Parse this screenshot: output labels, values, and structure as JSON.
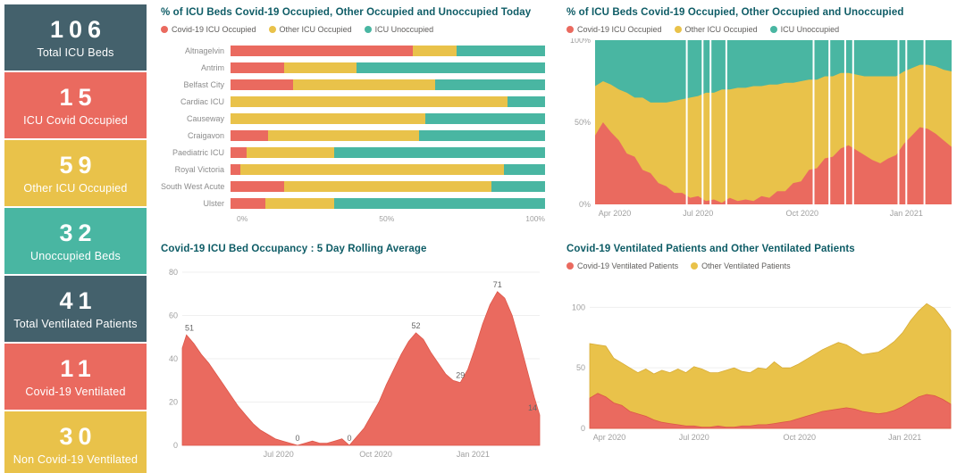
{
  "colors": {
    "red": "#EA6A5F",
    "yellow": "#E9C24A",
    "teal": "#49B6A2",
    "slate": "#44616C",
    "red_edge": "#DD5648",
    "yellow_edge": "#D8AC35",
    "title": "#0E5C66",
    "axis_text": "#9F9F9F",
    "legend_text": "#605E5C"
  },
  "kpi_cards": [
    {
      "value": "106",
      "label": "Total ICU Beds",
      "color": "slate"
    },
    {
      "value": "15",
      "label": "ICU Covid Occupied",
      "color": "red"
    },
    {
      "value": "59",
      "label": "Other ICU Occupied",
      "color": "yellow"
    },
    {
      "value": "32",
      "label": "Unoccupied Beds",
      "color": "teal"
    },
    {
      "value": "41",
      "label": "Total Ventilated Patients",
      "color": "slate"
    },
    {
      "value": "11",
      "label": "Covid-19 Ventilated",
      "color": "red"
    },
    {
      "value": "30",
      "label": "Non Covid-19 Ventilated",
      "color": "yellow"
    }
  ],
  "chart_data": [
    {
      "type": "bar",
      "variant": "stacked-100-horizontal",
      "title": "% of ICU Beds Covid-19 Occupied, Other Occupied and Unoccupied Today",
      "categories": [
        "Altnagelvin",
        "Antrim",
        "Belfast City",
        "Cardiac ICU",
        "Causeway",
        "Craigavon",
        "Paediatric ICU",
        "Royal Victoria",
        "South West Acute",
        "Ulster"
      ],
      "series": [
        {
          "name": "Covid-19 ICU Occupied",
          "color": "red",
          "values": [
            58,
            17,
            20,
            0,
            0,
            12,
            5,
            3,
            17,
            11
          ]
        },
        {
          "name": "Other ICU Occupied",
          "color": "yellow",
          "values": [
            14,
            23,
            45,
            88,
            62,
            48,
            28,
            84,
            66,
            22
          ]
        },
        {
          "name": "ICU Unoccupied",
          "color": "teal",
          "values": [
            28,
            60,
            35,
            12,
            38,
            40,
            67,
            13,
            17,
            67
          ]
        }
      ],
      "xlim": [
        0,
        100
      ],
      "x_ticks": [
        {
          "value": 0,
          "label": "0%"
        },
        {
          "value": 50,
          "label": "50%"
        },
        {
          "value": 100,
          "label": "100%"
        }
      ]
    },
    {
      "type": "area",
      "variant": "stacked-100",
      "title": "% of ICU Beds Covid-19 Occupied, Other Occupied and Unoccupied",
      "x": [
        "2020-04-01",
        "2020-04-08",
        "2020-04-15",
        "2020-04-22",
        "2020-04-29",
        "2020-05-06",
        "2020-05-13",
        "2020-05-20",
        "2020-05-27",
        "2020-06-03",
        "2020-06-10",
        "2020-06-17",
        "2020-06-24",
        "2020-07-01",
        "2020-07-08",
        "2020-07-15",
        "2020-07-22",
        "2020-07-29",
        "2020-08-05",
        "2020-08-12",
        "2020-08-19",
        "2020-08-26",
        "2020-09-02",
        "2020-09-09",
        "2020-09-16",
        "2020-09-23",
        "2020-09-30",
        "2020-10-07",
        "2020-10-14",
        "2020-10-21",
        "2020-10-28",
        "2020-11-04",
        "2020-11-11",
        "2020-11-18",
        "2020-11-25",
        "2020-12-02",
        "2020-12-09",
        "2020-12-16",
        "2020-12-23",
        "2020-12-30",
        "2021-01-06",
        "2021-01-13",
        "2021-01-20",
        "2021-01-27",
        "2021-02-03",
        "2021-02-10"
      ],
      "series": [
        {
          "name": "Covid-19 ICU Occupied",
          "color": "red",
          "values": [
            42,
            50,
            44,
            39,
            31,
            29,
            21,
            19,
            13,
            11,
            7,
            7,
            4,
            5,
            2,
            3,
            1,
            4,
            2,
            3,
            2,
            5,
            4,
            8,
            8,
            13,
            14,
            21,
            22,
            28,
            29,
            34,
            36,
            33,
            30,
            27,
            25,
            28,
            30,
            37,
            42,
            47,
            46,
            43,
            39,
            35
          ]
        },
        {
          "name": "Other ICU Occupied",
          "color": "yellow",
          "values": [
            30,
            25,
            29,
            31,
            37,
            36,
            44,
            43,
            49,
            51,
            56,
            57,
            61,
            61,
            66,
            65,
            69,
            66,
            69,
            68,
            70,
            67,
            69,
            65,
            66,
            61,
            61,
            55,
            54,
            50,
            49,
            46,
            44,
            46,
            48,
            51,
            53,
            50,
            48,
            44,
            41,
            38,
            39,
            41,
            43,
            46
          ]
        },
        {
          "name": "ICU Unoccupied",
          "color": "teal",
          "values": [
            28,
            25,
            27,
            30,
            32,
            35,
            35,
            38,
            38,
            38,
            37,
            36,
            35,
            34,
            32,
            32,
            30,
            30,
            29,
            29,
            28,
            28,
            27,
            27,
            26,
            26,
            25,
            24,
            24,
            22,
            22,
            20,
            20,
            21,
            22,
            22,
            22,
            22,
            22,
            19,
            17,
            15,
            15,
            16,
            18,
            19
          ]
        }
      ],
      "ylim": [
        0,
        100
      ],
      "y_ticks": [
        {
          "value": 0,
          "label": "0%"
        },
        {
          "value": 50,
          "label": "50%"
        },
        {
          "value": 100,
          "label": "100%"
        }
      ],
      "x_ticks": [
        {
          "date": "2020-04-01",
          "label": "Apr 2020"
        },
        {
          "date": "2020-07-01",
          "label": "Jul 2020"
        },
        {
          "date": "2020-10-01",
          "label": "Oct 2020"
        },
        {
          "date": "2021-01-01",
          "label": "Jan 2021"
        }
      ],
      "missing_dates": [
        "2020-06-21",
        "2020-07-05",
        "2020-07-12",
        "2020-07-26",
        "2020-10-11",
        "2020-10-25",
        "2020-11-08",
        "2020-11-15",
        "2020-12-25",
        "2021-01-01",
        "2021-01-17"
      ]
    },
    {
      "type": "area",
      "title": "Covid-19 ICU Bed Occupancy : 5 Day Rolling Average",
      "series": [
        {
          "name": "Covid-19 ICU Bed Occupancy",
          "color": "red",
          "x": [
            "2020-04-01",
            "2020-04-05",
            "2020-04-12",
            "2020-04-19",
            "2020-04-26",
            "2020-05-03",
            "2020-05-10",
            "2020-05-17",
            "2020-05-24",
            "2020-05-31",
            "2020-06-07",
            "2020-06-14",
            "2020-06-21",
            "2020-06-28",
            "2020-07-05",
            "2020-07-12",
            "2020-07-19",
            "2020-07-26",
            "2020-08-02",
            "2020-08-09",
            "2020-08-16",
            "2020-08-23",
            "2020-08-30",
            "2020-09-06",
            "2020-09-13",
            "2020-09-20",
            "2020-09-27",
            "2020-10-04",
            "2020-10-11",
            "2020-10-18",
            "2020-10-25",
            "2020-11-01",
            "2020-11-08",
            "2020-11-15",
            "2020-11-22",
            "2020-11-29",
            "2020-12-06",
            "2020-12-13",
            "2020-12-20",
            "2020-12-27",
            "2021-01-03",
            "2021-01-10",
            "2021-01-17",
            "2021-01-24",
            "2021-01-31",
            "2021-02-07",
            "2021-02-14",
            "2021-02-21",
            "2021-02-28",
            "2021-03-05"
          ],
          "values": [
            45,
            51,
            47,
            42,
            38,
            33,
            28,
            23,
            18,
            14,
            10,
            7,
            5,
            3,
            2,
            1,
            0,
            1,
            2,
            1,
            1,
            2,
            3,
            0,
            4,
            8,
            14,
            20,
            28,
            35,
            42,
            48,
            52,
            49,
            43,
            38,
            33,
            30,
            29,
            35,
            45,
            56,
            65,
            71,
            68,
            60,
            48,
            35,
            22,
            14
          ]
        }
      ],
      "ylim": [
        0,
        80
      ],
      "y_ticks": [
        0,
        20,
        40,
        60,
        80
      ],
      "x_ticks": [
        {
          "date": "2020-07-01",
          "label": "Jul 2020"
        },
        {
          "date": "2020-10-01",
          "label": "Oct 2020"
        },
        {
          "date": "2021-01-01",
          "label": "Jan 2021"
        }
      ],
      "annotations": [
        {
          "x": "2020-04-05",
          "y": 51,
          "text": "51"
        },
        {
          "x": "2020-07-19",
          "y": 0,
          "text": "0"
        },
        {
          "x": "2020-09-06",
          "y": 0,
          "text": "0"
        },
        {
          "x": "2020-11-08",
          "y": 52,
          "text": "52"
        },
        {
          "x": "2020-12-20",
          "y": 29,
          "text": "29"
        },
        {
          "x": "2021-01-24",
          "y": 71,
          "text": "71"
        },
        {
          "x": "2021-03-05",
          "y": 14,
          "text": "14"
        }
      ]
    },
    {
      "type": "area",
      "variant": "stacked",
      "title": "Covid-19 Ventilated Patients and Other Ventilated Patients",
      "x": [
        "2020-04-01",
        "2020-04-08",
        "2020-04-15",
        "2020-04-22",
        "2020-04-29",
        "2020-05-06",
        "2020-05-13",
        "2020-05-20",
        "2020-05-27",
        "2020-06-03",
        "2020-06-10",
        "2020-06-17",
        "2020-06-24",
        "2020-07-01",
        "2020-07-08",
        "2020-07-15",
        "2020-07-22",
        "2020-07-29",
        "2020-08-05",
        "2020-08-12",
        "2020-08-19",
        "2020-08-26",
        "2020-09-02",
        "2020-09-09",
        "2020-09-16",
        "2020-09-23",
        "2020-09-30",
        "2020-10-07",
        "2020-10-14",
        "2020-10-21",
        "2020-10-28",
        "2020-11-04",
        "2020-11-11",
        "2020-11-18",
        "2020-11-25",
        "2020-12-02",
        "2020-12-09",
        "2020-12-16",
        "2020-12-23",
        "2020-12-30",
        "2021-01-06",
        "2021-01-13",
        "2021-01-20",
        "2021-01-27",
        "2021-02-03",
        "2021-02-10"
      ],
      "series": [
        {
          "name": "Covid-19 Ventilated Patients",
          "color": "red",
          "values": [
            25,
            29,
            26,
            21,
            19,
            14,
            12,
            10,
            7,
            5,
            4,
            3,
            2,
            2,
            1,
            1,
            2,
            1,
            1,
            2,
            2,
            3,
            3,
            4,
            5,
            6,
            8,
            10,
            12,
            14,
            15,
            16,
            17,
            16,
            14,
            13,
            12,
            13,
            15,
            18,
            22,
            26,
            28,
            27,
            24,
            20
          ]
        },
        {
          "name": "Other Ventilated Patients",
          "color": "yellow",
          "values": [
            45,
            40,
            42,
            37,
            35,
            36,
            34,
            39,
            38,
            43,
            42,
            46,
            44,
            49,
            48,
            45,
            44,
            47,
            49,
            45,
            44,
            47,
            46,
            51,
            45,
            44,
            45,
            47,
            49,
            51,
            53,
            55,
            52,
            49,
            47,
            49,
            51,
            54,
            57,
            61,
            67,
            71,
            75,
            72,
            67,
            61
          ]
        }
      ],
      "ylim": [
        0,
        115
      ],
      "y_ticks": [
        0,
        50,
        100
      ],
      "x_ticks": [
        {
          "date": "2020-04-01",
          "label": "Apr 2020"
        },
        {
          "date": "2020-07-01",
          "label": "Jul 2020"
        },
        {
          "date": "2020-10-01",
          "label": "Oct 2020"
        },
        {
          "date": "2021-01-01",
          "label": "Jan 2021"
        }
      ]
    }
  ]
}
